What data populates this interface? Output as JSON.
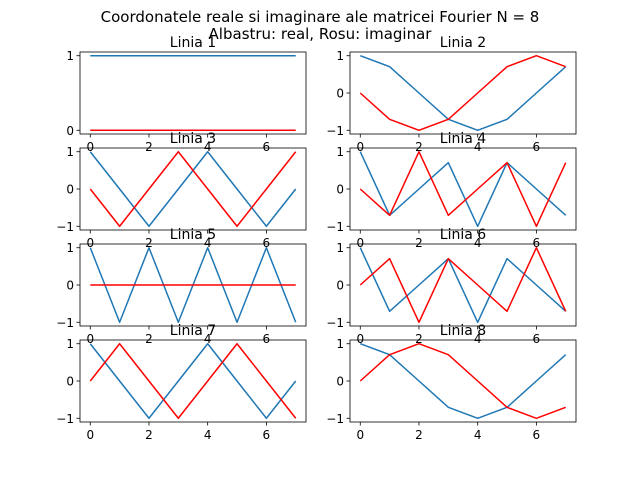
{
  "figure": {
    "title_line1": "Coordonatele reale si imaginare ale matricei Fourier N = 8",
    "title_line2": "Albastru: real, Rosu: imaginar"
  },
  "colors": {
    "real": "#1f77b4",
    "imag": "#ff0000"
  },
  "chart_data": [
    {
      "type": "line",
      "title": "Linia 1",
      "x": [
        0,
        1,
        2,
        3,
        4,
        5,
        6,
        7
      ],
      "xticks": [
        0,
        2,
        4,
        6
      ],
      "yticks": [
        0,
        1
      ],
      "ylim": [
        -0.05,
        1.05
      ],
      "series": [
        {
          "values": [
            1,
            1,
            1,
            1,
            1,
            1,
            1,
            1
          ],
          "color": "#1f77b4"
        },
        {
          "values": [
            0,
            0,
            0,
            0,
            0,
            0,
            0,
            0
          ],
          "color": "#ff0000"
        }
      ]
    },
    {
      "type": "line",
      "title": "Linia 2",
      "x": [
        0,
        1,
        2,
        3,
        4,
        5,
        6,
        7
      ],
      "xticks": [
        0,
        2,
        4,
        6
      ],
      "yticks": [
        -1,
        0,
        1
      ],
      "ylim": [
        -1.1,
        1.1
      ],
      "series": [
        {
          "values": [
            1,
            0.707,
            0,
            -0.707,
            -1,
            -0.707,
            0,
            0.707
          ],
          "color": "#1f77b4"
        },
        {
          "values": [
            0,
            -0.707,
            -1,
            -0.707,
            0,
            0.707,
            1,
            0.707
          ],
          "color": "#ff0000"
        }
      ]
    },
    {
      "type": "line",
      "title": "Linia 3",
      "x": [
        0,
        1,
        2,
        3,
        4,
        5,
        6,
        7
      ],
      "xticks": [
        0,
        2,
        4,
        6
      ],
      "yticks": [
        -1,
        0,
        1
      ],
      "ylim": [
        -1.1,
        1.1
      ],
      "series": [
        {
          "values": [
            1,
            0,
            -1,
            0,
            1,
            0,
            -1,
            0
          ],
          "color": "#1f77b4"
        },
        {
          "values": [
            0,
            -1,
            0,
            1,
            0,
            -1,
            0,
            1
          ],
          "color": "#ff0000"
        }
      ]
    },
    {
      "type": "line",
      "title": "Linia 4",
      "x": [
        0,
        1,
        2,
        3,
        4,
        5,
        6,
        7
      ],
      "xticks": [
        0,
        2,
        4,
        6
      ],
      "yticks": [
        -1,
        0,
        1
      ],
      "ylim": [
        -1.1,
        1.1
      ],
      "series": [
        {
          "values": [
            1,
            -0.707,
            0,
            0.707,
            -1,
            0.707,
            0,
            -0.707
          ],
          "color": "#1f77b4"
        },
        {
          "values": [
            0,
            -0.707,
            1,
            -0.707,
            0,
            0.707,
            -1,
            0.707
          ],
          "color": "#ff0000"
        }
      ]
    },
    {
      "type": "line",
      "title": "Linia 5",
      "x": [
        0,
        1,
        2,
        3,
        4,
        5,
        6,
        7
      ],
      "xticks": [
        0,
        2,
        4,
        6
      ],
      "yticks": [
        -1,
        0,
        1
      ],
      "ylim": [
        -1.1,
        1.1
      ],
      "series": [
        {
          "values": [
            1,
            -1,
            1,
            -1,
            1,
            -1,
            1,
            -1
          ],
          "color": "#1f77b4"
        },
        {
          "values": [
            0,
            0,
            0,
            0,
            0,
            0,
            0,
            0
          ],
          "color": "#ff0000"
        }
      ]
    },
    {
      "type": "line",
      "title": "Linia 6",
      "x": [
        0,
        1,
        2,
        3,
        4,
        5,
        6,
        7
      ],
      "xticks": [
        0,
        2,
        4,
        6
      ],
      "yticks": [
        -1,
        0,
        1
      ],
      "ylim": [
        -1.1,
        1.1
      ],
      "series": [
        {
          "values": [
            1,
            -0.707,
            0,
            0.707,
            -1,
            0.707,
            0,
            -0.707
          ],
          "color": "#1f77b4"
        },
        {
          "values": [
            0,
            0.707,
            -1,
            0.707,
            0,
            -0.707,
            1,
            -0.707
          ],
          "color": "#ff0000"
        }
      ]
    },
    {
      "type": "line",
      "title": "Linia 7",
      "x": [
        0,
        1,
        2,
        3,
        4,
        5,
        6,
        7
      ],
      "xticks": [
        0,
        2,
        4,
        6
      ],
      "yticks": [
        -1,
        0,
        1
      ],
      "ylim": [
        -1.1,
        1.1
      ],
      "series": [
        {
          "values": [
            1,
            0,
            -1,
            0,
            1,
            0,
            -1,
            0
          ],
          "color": "#1f77b4"
        },
        {
          "values": [
            0,
            1,
            0,
            -1,
            0,
            1,
            0,
            -1
          ],
          "color": "#ff0000"
        }
      ]
    },
    {
      "type": "line",
      "title": "Linia 8",
      "x": [
        0,
        1,
        2,
        3,
        4,
        5,
        6,
        7
      ],
      "xticks": [
        0,
        2,
        4,
        6
      ],
      "yticks": [
        -1,
        0,
        1
      ],
      "ylim": [
        -1.1,
        1.1
      ],
      "series": [
        {
          "values": [
            1,
            0.707,
            0,
            -0.707,
            -1,
            -0.707,
            0,
            0.707
          ],
          "color": "#1f77b4"
        },
        {
          "values": [
            0,
            0.707,
            1,
            0.707,
            0,
            -0.707,
            -1,
            -0.707
          ],
          "color": "#ff0000"
        }
      ]
    }
  ]
}
